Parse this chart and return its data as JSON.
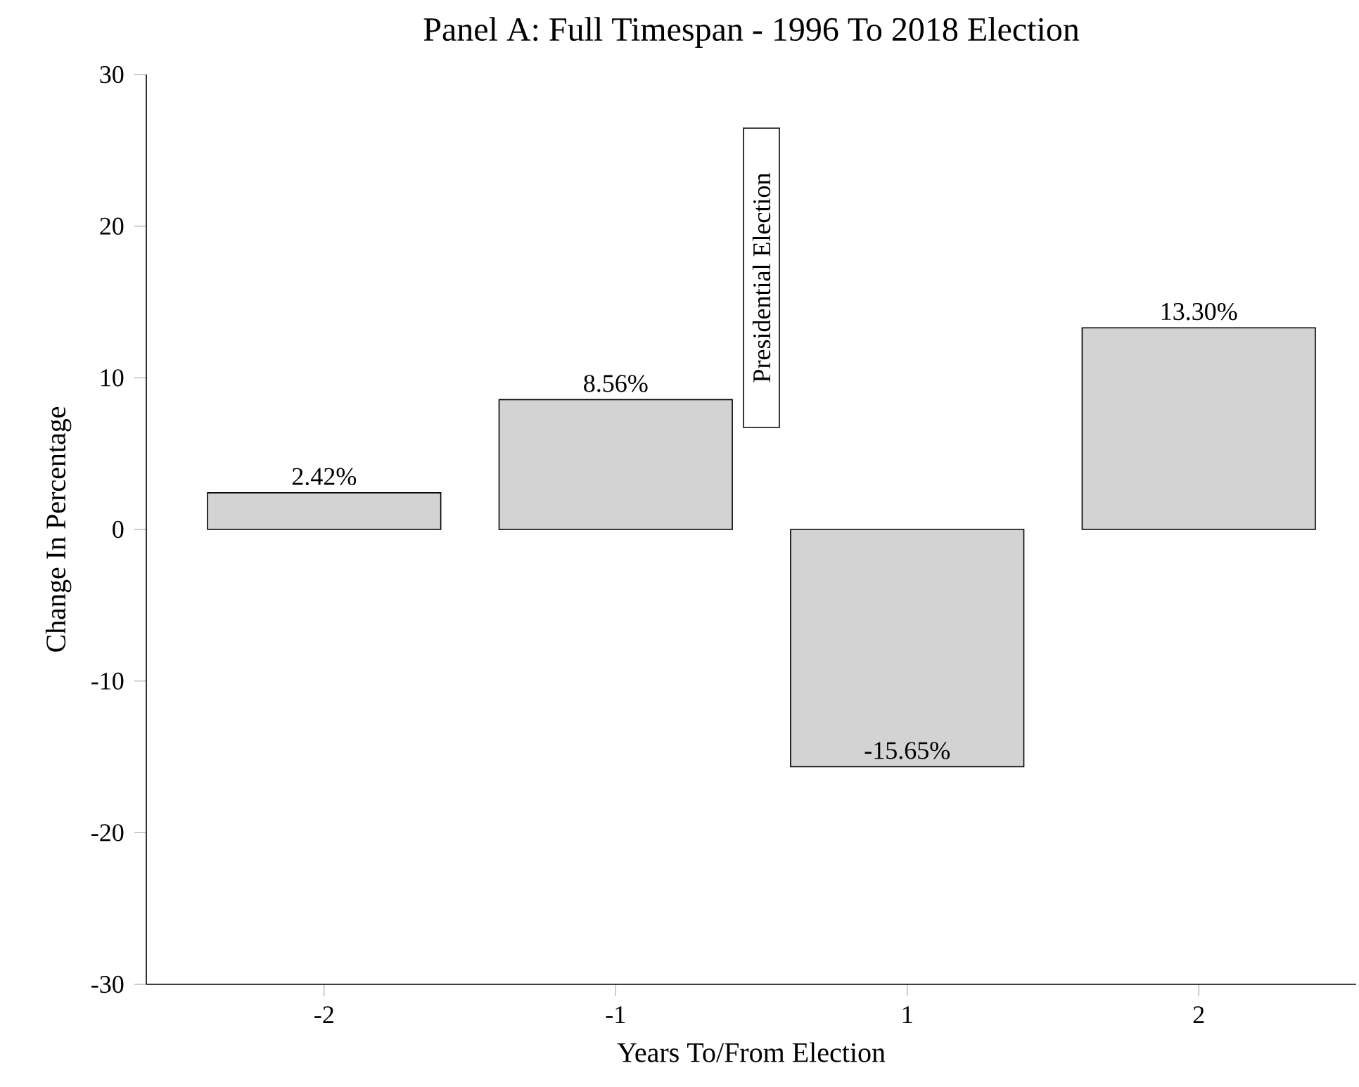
{
  "chart_data": {
    "type": "bar",
    "title": "Panel A: Full Timespan - 1996 To 2018 Election",
    "xlabel": "Years To/From Election",
    "ylabel": "Change In Percentage",
    "categories": [
      "-2",
      "-1",
      "1",
      "2"
    ],
    "values": [
      2.42,
      8.56,
      -15.65,
      13.3
    ],
    "value_labels": [
      "2.42%",
      "8.56%",
      "-15.65%",
      "13.30%"
    ],
    "color": "#d3d3d3",
    "ylim": [
      -30,
      30
    ],
    "yticks": [
      -30,
      -20,
      -10,
      0,
      10,
      20,
      30
    ],
    "annotations": [
      "Presidential Election"
    ]
  }
}
